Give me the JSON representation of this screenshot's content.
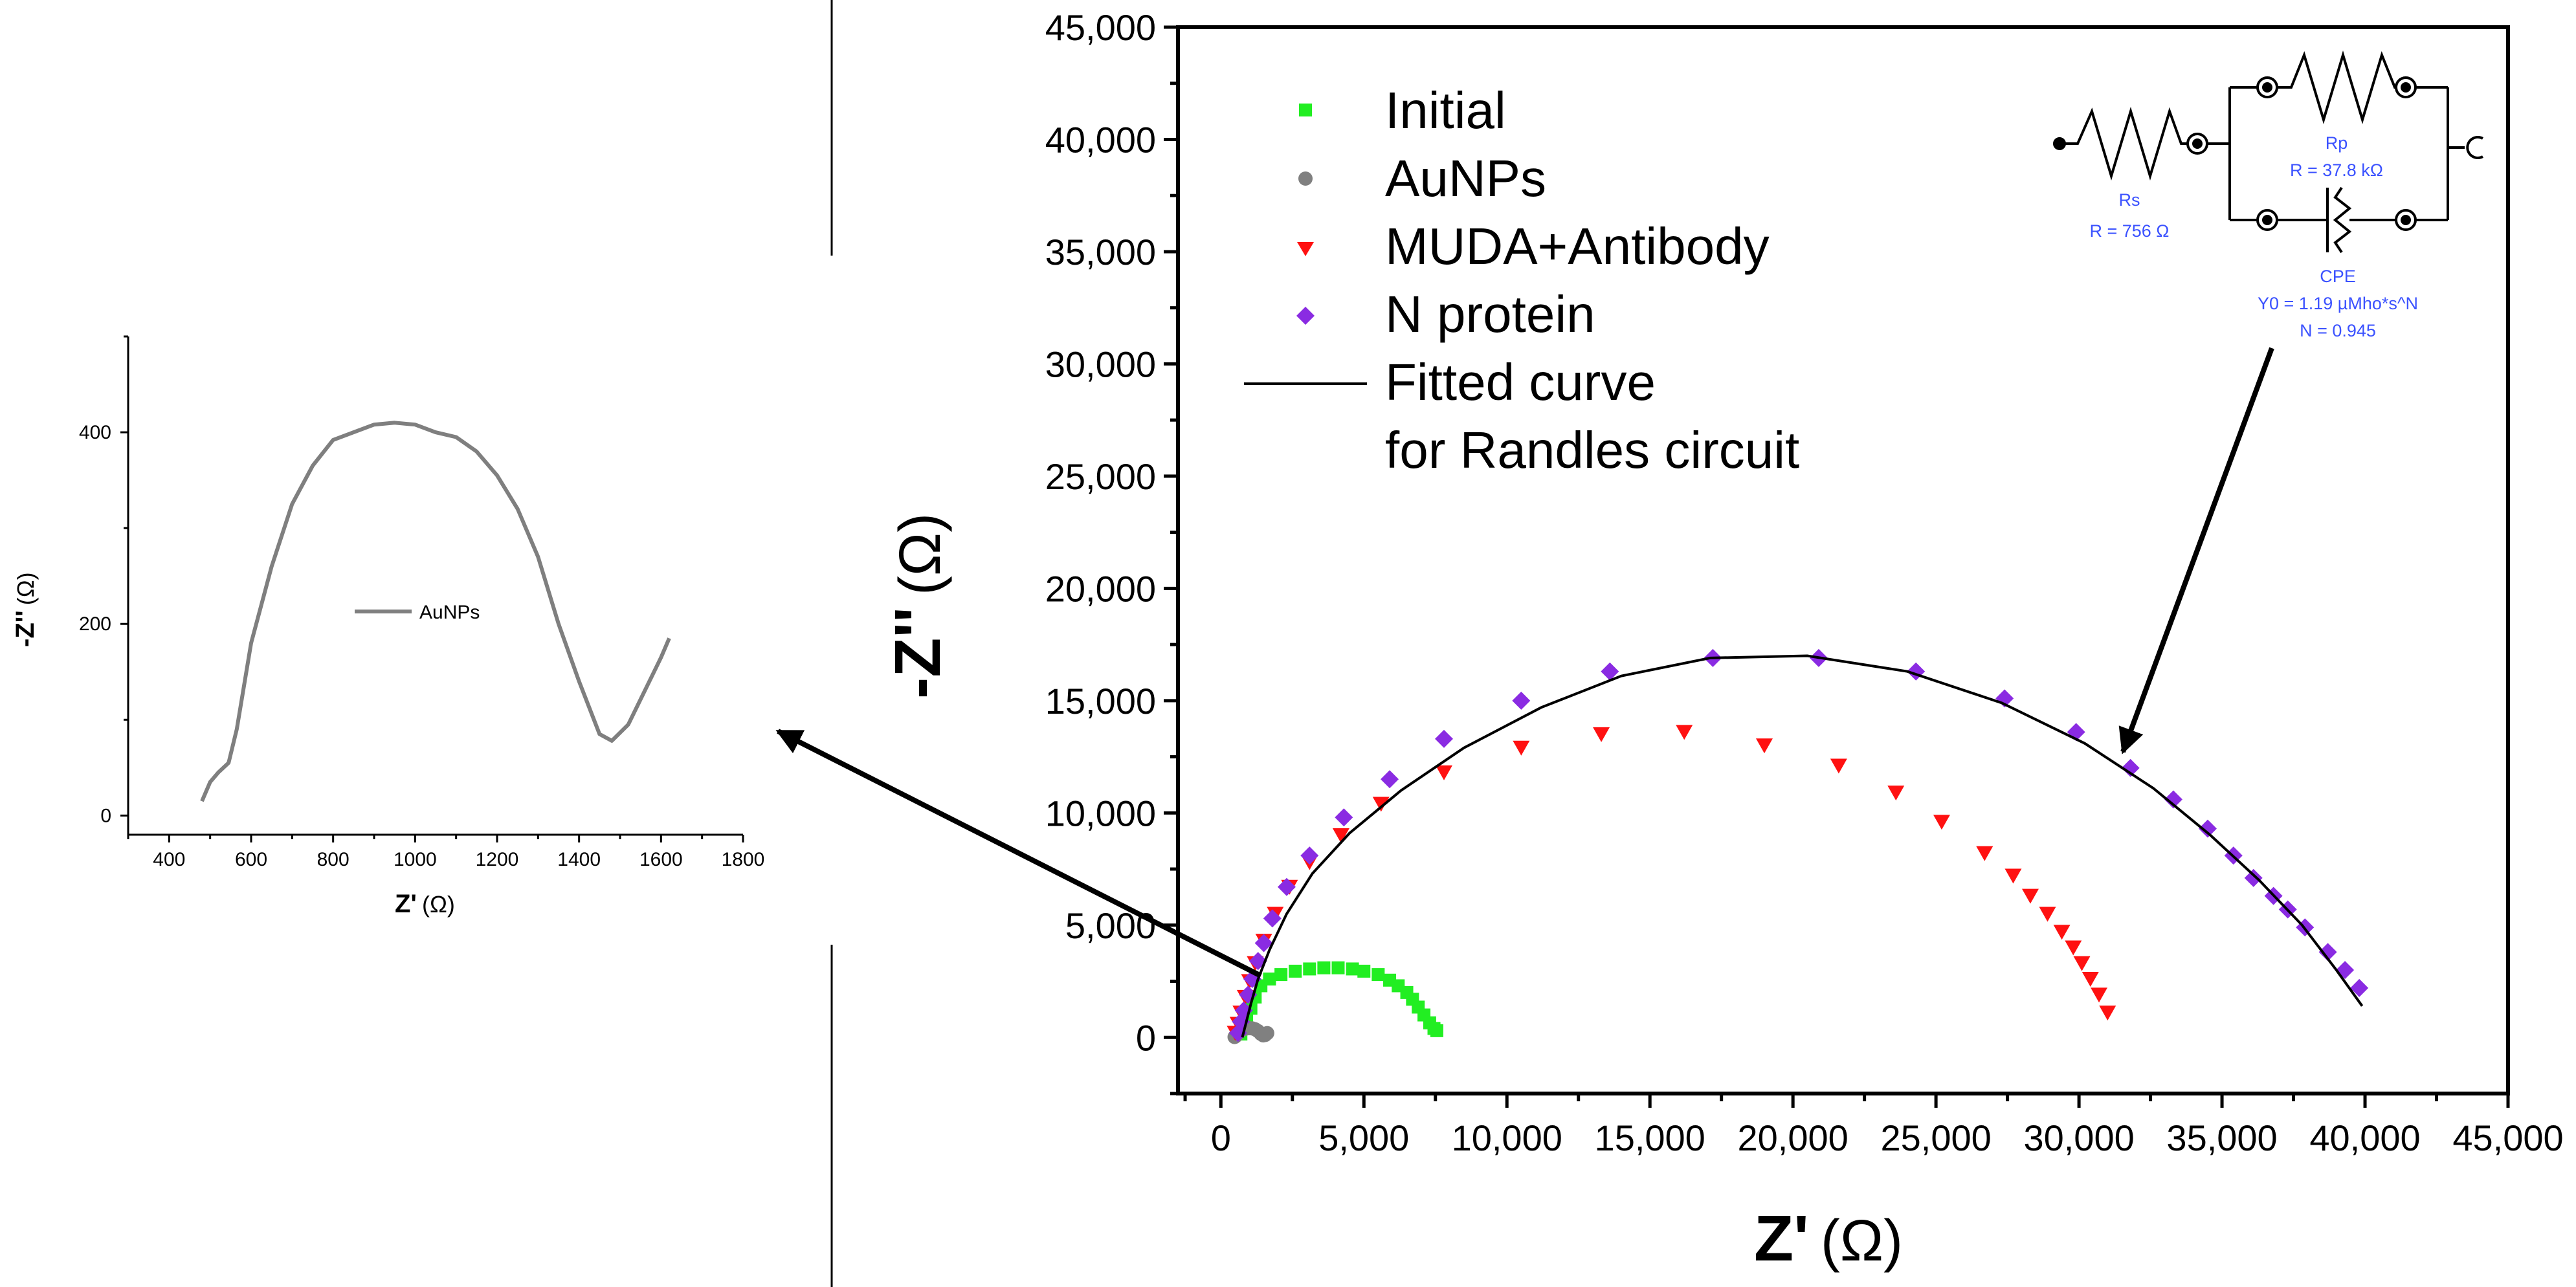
{
  "chart_data": [
    {
      "type": "scatter",
      "id": "main-nyquist",
      "xlabel": "Z'",
      "xunit": "(Ω)",
      "ylabel": "-Z''",
      "yunit": "(Ω)",
      "xlim": [
        -1500,
        45000
      ],
      "ylim": [
        -2500,
        45000
      ],
      "xticks": [
        0,
        5000,
        10000,
        15000,
        20000,
        25000,
        30000,
        35000,
        40000,
        45000
      ],
      "xtick_labels": [
        "0",
        "5,000",
        "10,000",
        "15,000",
        "20,000",
        "25,000",
        "30,000",
        "35,000",
        "40,000",
        "45,000"
      ],
      "yticks": [
        0,
        5000,
        10000,
        15000,
        20000,
        25000,
        30000,
        35000,
        40000,
        45000
      ],
      "ytick_labels": [
        "0",
        "5,000",
        "10,000",
        "15,000",
        "20,000",
        "25,000",
        "30,000",
        "35,000",
        "40,000",
        "45,000"
      ],
      "legend": {
        "placement": "top-left",
        "entries": [
          "Initial",
          "AuNPs",
          "MUDA+Antibody",
          "N protein",
          "Fitted curve",
          "for Randles circuit"
        ]
      },
      "series": [
        {
          "name": "Initial",
          "marker": "square",
          "color": "#22ee22",
          "points": [
            [
              700,
              150
            ],
            [
              800,
              400
            ],
            [
              900,
              800
            ],
            [
              1050,
              1300
            ],
            [
              1200,
              1800
            ],
            [
              1400,
              2300
            ],
            [
              1700,
              2600
            ],
            [
              2100,
              2800
            ],
            [
              2600,
              2950
            ],
            [
              3100,
              3050
            ],
            [
              3600,
              3100
            ],
            [
              4100,
              3100
            ],
            [
              4600,
              3050
            ],
            [
              5000,
              2950
            ],
            [
              5500,
              2800
            ],
            [
              5900,
              2550
            ],
            [
              6200,
              2300
            ],
            [
              6500,
              2000
            ],
            [
              6700,
              1700
            ],
            [
              6900,
              1350
            ],
            [
              7100,
              1000
            ],
            [
              7300,
              650
            ],
            [
              7450,
              400
            ],
            [
              7550,
              300
            ]
          ]
        },
        {
          "name": "AuNPs",
          "marker": "circle",
          "color": "#808080",
          "points": [
            [
              480,
              20
            ],
            [
              520,
              60
            ],
            [
              600,
              180
            ],
            [
              700,
              300
            ],
            [
              800,
              370
            ],
            [
              900,
              400
            ],
            [
              1000,
              410
            ],
            [
              1100,
              400
            ],
            [
              1200,
              360
            ],
            [
              1300,
              280
            ],
            [
              1400,
              160
            ],
            [
              1480,
              90
            ],
            [
              1550,
              110
            ],
            [
              1620,
              190
            ]
          ]
        },
        {
          "name": "MUDA+Antibody",
          "marker": "triangle-down",
          "color": "#ff1111",
          "points": [
            [
              500,
              200
            ],
            [
              600,
              600
            ],
            [
              700,
              1100
            ],
            [
              850,
              1800
            ],
            [
              1000,
              2500
            ],
            [
              1200,
              3300
            ],
            [
              1500,
              4300
            ],
            [
              1900,
              5500
            ],
            [
              2400,
              6700
            ],
            [
              3100,
              7800
            ],
            [
              4200,
              9000
            ],
            [
              5600,
              10400
            ],
            [
              7800,
              11800
            ],
            [
              10500,
              12900
            ],
            [
              13300,
              13500
            ],
            [
              16200,
              13600
            ],
            [
              19000,
              13000
            ],
            [
              21600,
              12100
            ],
            [
              23600,
              10900
            ],
            [
              25200,
              9600
            ],
            [
              26700,
              8200
            ],
            [
              27700,
              7200
            ],
            [
              28300,
              6300
            ],
            [
              28900,
              5500
            ],
            [
              29400,
              4700
            ],
            [
              29800,
              4000
            ],
            [
              30100,
              3300
            ],
            [
              30400,
              2600
            ],
            [
              30700,
              1900
            ],
            [
              31000,
              1100
            ]
          ]
        },
        {
          "name": "N protein",
          "marker": "diamond",
          "color": "#8a2be2",
          "points": [
            [
              600,
              200
            ],
            [
              700,
              700
            ],
            [
              800,
              1200
            ],
            [
              950,
              1900
            ],
            [
              1100,
              2600
            ],
            [
              1300,
              3400
            ],
            [
              1500,
              4200
            ],
            [
              1800,
              5300
            ],
            [
              2300,
              6700
            ],
            [
              3100,
              8100
            ],
            [
              4300,
              9800
            ],
            [
              5900,
              11500
            ],
            [
              7800,
              13300
            ],
            [
              10500,
              15000
            ],
            [
              13600,
              16300
            ],
            [
              17200,
              16900
            ],
            [
              20900,
              16900
            ],
            [
              24300,
              16300
            ],
            [
              27400,
              15100
            ],
            [
              29900,
              13600
            ],
            [
              31800,
              12000
            ],
            [
              33300,
              10600
            ],
            [
              34500,
              9300
            ],
            [
              35400,
              8100
            ],
            [
              36100,
              7100
            ],
            [
              36800,
              6300
            ],
            [
              37300,
              5700
            ],
            [
              37900,
              4900
            ],
            [
              38700,
              3800
            ],
            [
              39300,
              3000
            ],
            [
              39800,
              2200
            ]
          ]
        },
        {
          "name": "Fitted curve for Randles circuit",
          "marker": "line",
          "color": "#000000",
          "points": [
            [
              750,
              0
            ],
            [
              850,
              500
            ],
            [
              1050,
              1500
            ],
            [
              1300,
              2600
            ],
            [
              1700,
              3900
            ],
            [
              2300,
              5500
            ],
            [
              3200,
              7300
            ],
            [
              4500,
              9100
            ],
            [
              6300,
              11000
            ],
            [
              8500,
              12900
            ],
            [
              11200,
              14700
            ],
            [
              14000,
              16100
            ],
            [
              17100,
              16900
            ],
            [
              20500,
              17000
            ],
            [
              24000,
              16300
            ],
            [
              27300,
              14900
            ],
            [
              30200,
              13100
            ],
            [
              32600,
              11100
            ],
            [
              34600,
              9000
            ],
            [
              36300,
              7000
            ],
            [
              37800,
              5000
            ],
            [
              39000,
              3000
            ],
            [
              39900,
              1400
            ]
          ]
        }
      ],
      "circuit": {
        "rs_label": "Rs",
        "rs_value": "R = 756 Ω",
        "rp_label": "Rp",
        "rp_value": "R = 37.8 kΩ",
        "cpe_label": "CPE",
        "cpe_y0": "Y0 = 1.19 µMho*s^N",
        "cpe_n": "N = 0.945"
      }
    },
    {
      "type": "line",
      "id": "inset-aunps",
      "xlabel": "Z'",
      "xunit": "(Ω)",
      "ylabel": "-Z''",
      "yunit": "(Ω)",
      "xlim": [
        300,
        1800
      ],
      "ylim": [
        -20,
        500
      ],
      "xticks": [
        400,
        600,
        800,
        1000,
        1200,
        1400,
        1600,
        1800
      ],
      "xtick_labels": [
        "400",
        "600",
        "800",
        "1000",
        "1200",
        "1400",
        "1600",
        "1800"
      ],
      "yticks": [
        0,
        200,
        400
      ],
      "ytick_labels": [
        "0",
        "200",
        "400"
      ],
      "legend": {
        "placement": "center",
        "entries": [
          "AuNPs"
        ]
      },
      "series": [
        {
          "name": "AuNPs",
          "color": "#7f7f7f",
          "points": [
            [
              480,
              15
            ],
            [
              500,
              35
            ],
            [
              520,
              45
            ],
            [
              545,
              55
            ],
            [
              565,
              90
            ],
            [
              600,
              180
            ],
            [
              650,
              260
            ],
            [
              700,
              325
            ],
            [
              750,
              365
            ],
            [
              800,
              392
            ],
            [
              850,
              400
            ],
            [
              900,
              408
            ],
            [
              950,
              410
            ],
            [
              1000,
              408
            ],
            [
              1050,
              400
            ],
            [
              1100,
              395
            ],
            [
              1150,
              380
            ],
            [
              1200,
              355
            ],
            [
              1250,
              320
            ],
            [
              1300,
              270
            ],
            [
              1350,
              200
            ],
            [
              1400,
              140
            ],
            [
              1450,
              85
            ],
            [
              1480,
              78
            ],
            [
              1520,
              95
            ],
            [
              1560,
              130
            ],
            [
              1600,
              165
            ],
            [
              1620,
              185
            ]
          ]
        }
      ]
    }
  ]
}
